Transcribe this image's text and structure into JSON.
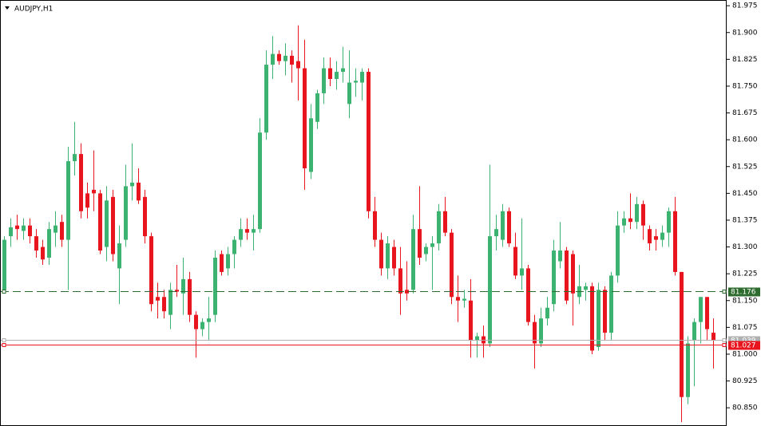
{
  "chart_data": {
    "type": "candlestick",
    "title": "AUDJPY,H1",
    "ylim": [
      80.799,
      81.991
    ],
    "yticks": [
      81.975,
      {
        "value": 81.9,
        "label": "81.900"
      },
      81.825,
      {
        "value": 81.75,
        "label": "81.750"
      },
      81.675,
      {
        "value": 81.6,
        "label": "81.600"
      },
      81.525,
      {
        "value": 81.45,
        "label": "81.450"
      },
      81.375,
      {
        "value": 81.3,
        "label": "81.300"
      },
      81.225,
      {
        "value": 81.15,
        "label": "81.150"
      },
      81.075,
      {
        "value": 81.0,
        "label": "81.000"
      },
      80.925,
      {
        "value": 80.85,
        "label": "80.850"
      }
    ],
    "up_color": "#3cb371",
    "down_color": "#e8141e",
    "levels": [
      {
        "value": 81.039,
        "color": "#b0b0b0"
      },
      {
        "value": 81.176,
        "color": "#2e6b2e",
        "style": "dashed"
      },
      {
        "value": 81.027,
        "color": "#e8141e"
      }
    ],
    "candles": [
      [
        81.18,
        81.33,
        81.17,
        81.32
      ],
      [
        81.33,
        81.38,
        81.3,
        81.355
      ],
      [
        81.36,
        81.39,
        81.32,
        81.35
      ],
      [
        81.345,
        81.38,
        81.32,
        81.36
      ],
      [
        81.36,
        81.38,
        81.31,
        81.33
      ],
      [
        81.33,
        81.35,
        81.27,
        81.29
      ],
      [
        81.3,
        81.32,
        81.25,
        81.265
      ],
      [
        81.27,
        81.37,
        81.25,
        81.35
      ],
      [
        81.34,
        81.4,
        81.3,
        81.36
      ],
      [
        81.37,
        81.39,
        81.3,
        81.32
      ],
      [
        81.32,
        81.58,
        81.18,
        81.54
      ],
      [
        81.54,
        81.65,
        81.5,
        81.56
      ],
      [
        81.56,
        81.59,
        81.38,
        81.4
      ],
      [
        81.45,
        81.48,
        81.38,
        81.41
      ],
      [
        81.46,
        81.57,
        81.4,
        81.45
      ],
      [
        81.45,
        81.46,
        81.28,
        81.29
      ],
      [
        81.3,
        81.47,
        81.26,
        81.43
      ],
      [
        81.44,
        81.46,
        81.26,
        81.28
      ],
      [
        81.24,
        81.36,
        81.14,
        81.31
      ],
      [
        81.32,
        81.53,
        81.3,
        81.47
      ],
      [
        81.47,
        81.59,
        81.43,
        81.48
      ],
      [
        81.48,
        81.52,
        81.42,
        81.43
      ],
      [
        81.44,
        81.46,
        81.31,
        81.33
      ],
      [
        81.33,
        81.34,
        81.12,
        81.14
      ],
      [
        81.16,
        81.2,
        81.1,
        81.15
      ],
      [
        81.16,
        81.18,
        81.1,
        81.12
      ],
      [
        81.11,
        81.2,
        81.07,
        81.18
      ],
      [
        81.18,
        81.25,
        81.16,
        81.175
      ],
      [
        81.17,
        81.27,
        81.11,
        81.21
      ],
      [
        81.21,
        81.23,
        81.09,
        81.11
      ],
      [
        81.11,
        81.12,
        80.99,
        81.07
      ],
      [
        81.07,
        81.1,
        81.05,
        81.09
      ],
      [
        81.09,
        81.16,
        81.04,
        81.1
      ],
      [
        81.11,
        81.29,
        81.09,
        81.27
      ],
      [
        81.28,
        81.29,
        81.22,
        81.23
      ],
      [
        81.24,
        81.3,
        81.22,
        81.28
      ],
      [
        81.28,
        81.33,
        81.24,
        81.32
      ],
      [
        81.32,
        81.38,
        81.3,
        81.35
      ],
      [
        81.35,
        81.38,
        81.32,
        81.34
      ],
      [
        81.34,
        81.39,
        81.29,
        81.35
      ],
      [
        81.35,
        81.66,
        81.34,
        81.62
      ],
      [
        81.62,
        81.85,
        81.6,
        81.81
      ],
      [
        81.81,
        81.89,
        81.77,
        81.84
      ],
      [
        81.84,
        81.85,
        81.81,
        81.82
      ],
      [
        81.82,
        81.87,
        81.78,
        81.835
      ],
      [
        81.835,
        81.85,
        81.76,
        81.81
      ],
      [
        81.82,
        81.92,
        81.71,
        81.8
      ],
      [
        81.8,
        81.88,
        81.46,
        81.52
      ],
      [
        81.51,
        81.7,
        81.49,
        81.66
      ],
      [
        81.65,
        81.74,
        81.63,
        81.73
      ],
      [
        81.73,
        81.83,
        81.7,
        81.8
      ],
      [
        81.8,
        81.83,
        81.75,
        81.77
      ],
      [
        81.77,
        81.82,
        81.74,
        81.79
      ],
      [
        81.79,
        81.86,
        81.76,
        81.8
      ],
      [
        81.7,
        81.85,
        81.66,
        81.76
      ],
      [
        81.76,
        81.8,
        81.72,
        81.765
      ],
      [
        81.76,
        81.8,
        81.71,
        81.79
      ],
      [
        81.79,
        81.8,
        81.38,
        81.4
      ],
      [
        81.4,
        81.44,
        81.3,
        81.32
      ],
      [
        81.32,
        81.34,
        81.22,
        81.24
      ],
      [
        81.24,
        81.33,
        81.21,
        81.31
      ],
      [
        81.3,
        81.32,
        81.22,
        81.24
      ],
      [
        81.24,
        81.3,
        81.11,
        81.17
      ],
      [
        81.18,
        81.26,
        81.15,
        81.17
      ],
      [
        81.18,
        81.39,
        81.17,
        81.35
      ],
      [
        81.35,
        81.47,
        81.25,
        81.27
      ],
      [
        81.28,
        81.31,
        81.26,
        81.3
      ],
      [
        81.3,
        81.33,
        81.18,
        81.31
      ],
      [
        81.31,
        81.42,
        81.29,
        81.4
      ],
      [
        81.4,
        81.44,
        81.33,
        81.34
      ],
      [
        81.34,
        81.35,
        81.14,
        81.16
      ],
      [
        81.16,
        81.22,
        81.09,
        81.15
      ],
      [
        81.15,
        81.18,
        81.13,
        81.155
      ],
      [
        81.15,
        81.21,
        80.99,
        81.04
      ],
      [
        81.04,
        81.06,
        80.99,
        81.05
      ],
      [
        81.05,
        81.08,
        80.99,
        81.03
      ],
      [
        81.03,
        81.53,
        81.02,
        81.33
      ],
      [
        81.33,
        81.39,
        81.29,
        81.35
      ],
      [
        81.32,
        81.42,
        81.3,
        81.4
      ],
      [
        81.4,
        81.41,
        81.3,
        81.31
      ],
      [
        81.3,
        81.34,
        81.21,
        81.22
      ],
      [
        81.22,
        81.38,
        81.18,
        81.24
      ],
      [
        81.24,
        81.25,
        81.08,
        81.09
      ],
      [
        81.09,
        81.11,
        80.96,
        81.03
      ],
      [
        81.03,
        81.13,
        81.02,
        81.1
      ],
      [
        81.1,
        81.16,
        81.08,
        81.13
      ],
      [
        81.14,
        81.32,
        81.12,
        81.29
      ],
      [
        81.26,
        81.37,
        81.24,
        81.29
      ],
      [
        81.29,
        81.3,
        81.14,
        81.15
      ],
      [
        81.28,
        81.29,
        81.08,
        81.17
      ],
      [
        81.16,
        81.25,
        81.14,
        81.19
      ],
      [
        81.18,
        81.2,
        81.15,
        81.19
      ],
      [
        81.19,
        81.2,
        81.0,
        81.01
      ],
      [
        81.02,
        81.2,
        81.01,
        81.18
      ],
      [
        81.18,
        81.19,
        81.04,
        81.06
      ],
      [
        81.06,
        81.23,
        81.04,
        81.22
      ],
      [
        81.22,
        81.4,
        81.2,
        81.36
      ],
      [
        81.36,
        81.4,
        81.34,
        81.38
      ],
      [
        81.38,
        81.45,
        81.35,
        81.37
      ],
      [
        81.37,
        81.44,
        81.35,
        81.42
      ],
      [
        81.42,
        81.43,
        81.32,
        81.36
      ],
      [
        81.35,
        81.36,
        81.29,
        81.31
      ],
      [
        81.33,
        81.35,
        81.29,
        81.32
      ],
      [
        81.32,
        81.36,
        81.3,
        81.34
      ],
      [
        81.34,
        81.41,
        81.3,
        81.4
      ],
      [
        81.4,
        81.44,
        81.22,
        81.23
      ],
      [
        81.23,
        81.23,
        80.81,
        80.88
      ],
      [
        80.88,
        81.05,
        80.86,
        81.03
      ],
      [
        81.04,
        81.1,
        80.91,
        81.09
      ],
      [
        81.09,
        81.16,
        81.03,
        81.16
      ],
      [
        81.16,
        81.16,
        81.04,
        81.07
      ],
      [
        81.06,
        81.1,
        80.96,
        81.04
      ]
    ]
  }
}
